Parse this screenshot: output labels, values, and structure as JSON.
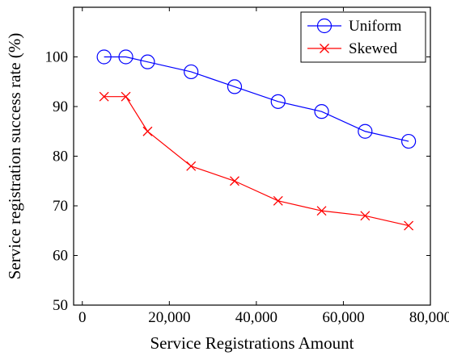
{
  "chart_data": {
    "type": "line",
    "title": "",
    "xlabel": "Service Registrations Amount",
    "ylabel": "Service registration success rate (%)",
    "xlim": [
      -2000,
      80000
    ],
    "ylim": [
      50,
      110
    ],
    "x_ticks": [
      0,
      20000,
      40000,
      60000,
      80000
    ],
    "x_tick_labels": [
      "0",
      "20,000",
      "40,000",
      "60,000",
      "80,000"
    ],
    "y_ticks": [
      50,
      60,
      70,
      80,
      90,
      100
    ],
    "y_tick_labels": [
      "50",
      "60",
      "70",
      "80",
      "90",
      "100"
    ],
    "grid": false,
    "legend_position": "top-right",
    "series": [
      {
        "name": "Uniform",
        "marker": "circle",
        "color": "#0000ff",
        "x": [
          5000,
          10000,
          15000,
          25000,
          35000,
          45000,
          55000,
          65000,
          75000
        ],
        "y": [
          100,
          100,
          99,
          97,
          94,
          91,
          89,
          85,
          83
        ]
      },
      {
        "name": "Skewed",
        "marker": "x",
        "color": "#ff0000",
        "x": [
          5000,
          10000,
          15000,
          25000,
          35000,
          45000,
          55000,
          65000,
          75000
        ],
        "y": [
          92,
          92,
          85,
          78,
          75,
          71,
          69,
          68,
          66
        ]
      }
    ]
  }
}
